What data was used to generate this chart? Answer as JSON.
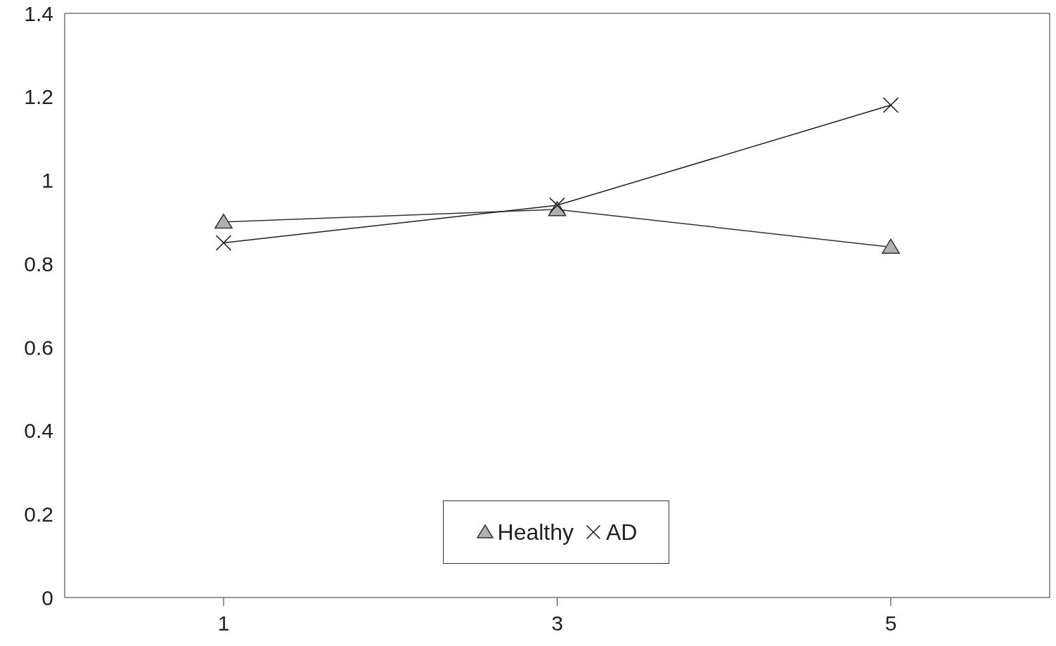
{
  "chart_data": {
    "type": "line",
    "categories": [
      "1",
      "3",
      "5"
    ],
    "series": [
      {
        "name": "Healthy",
        "color": "#333333",
        "marker": "triangle",
        "values": [
          0.9,
          0.93,
          0.84
        ]
      },
      {
        "name": "AD",
        "color": "#1f1f1f",
        "marker": "cross",
        "values": [
          0.85,
          0.94,
          1.18
        ]
      }
    ],
    "ylim": [
      0,
      1.4
    ],
    "yticks": [
      0,
      0.2,
      0.4,
      0.6,
      0.8,
      1,
      1.2,
      1.4
    ],
    "legend": "bottom",
    "line_style": "solid"
  }
}
